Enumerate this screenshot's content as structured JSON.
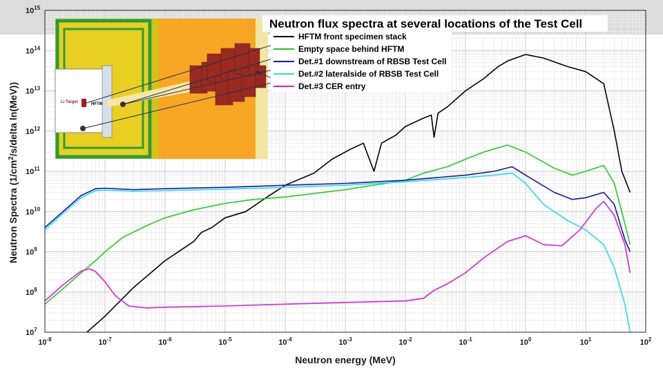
{
  "chart_data": {
    "type": "line",
    "title": "Neutron flux spectra at several locations of the Test Cell",
    "xlabel": "Neutron energy (MeV)",
    "ylabel_parts": [
      "Neutron Spectra (1/cm",
      "2",
      "/s/delta ln(MeV))"
    ],
    "x_scale": "log",
    "y_scale": "log",
    "xlim": [
      1e-08,
      100
    ],
    "ylim": [
      10000000.0,
      1000000000000000.0
    ],
    "grid": true,
    "legend_position": "top-right",
    "x_ticks": [
      {
        "base": "10",
        "exp": "-8"
      },
      {
        "base": "10",
        "exp": "-7"
      },
      {
        "base": "10",
        "exp": "-6"
      },
      {
        "base": "10",
        "exp": "-5"
      },
      {
        "base": "10",
        "exp": "-4"
      },
      {
        "base": "10",
        "exp": "-3"
      },
      {
        "base": "10",
        "exp": "-2"
      },
      {
        "base": "10",
        "exp": "-1"
      },
      {
        "base": "10",
        "exp": "0"
      },
      {
        "base": "10",
        "exp": "1"
      },
      {
        "base": "10",
        "exp": "2"
      }
    ],
    "y_ticks": [
      {
        "base": "10",
        "exp": "7"
      },
      {
        "base": "10",
        "exp": "8"
      },
      {
        "base": "10",
        "exp": "9"
      },
      {
        "base": "10",
        "exp": "10"
      },
      {
        "base": "10",
        "exp": "11"
      },
      {
        "base": "10",
        "exp": "12"
      },
      {
        "base": "10",
        "exp": "13"
      },
      {
        "base": "10",
        "exp": "14"
      },
      {
        "base": "10",
        "exp": "15"
      }
    ],
    "series": [
      {
        "name": "HFTM front specimen stack",
        "color": "#000000",
        "points": [
          [
            5e-08,
            10000000.0
          ],
          [
            1e-07,
            25000000.0
          ],
          [
            3e-07,
            130000000.0
          ],
          [
            1e-06,
            600000000.0
          ],
          [
            3e-06,
            1800000000.0
          ],
          [
            4e-06,
            3000000000.0
          ],
          [
            6e-06,
            4000000000.0
          ],
          [
            1e-05,
            7000000000.0
          ],
          [
            2.2e-05,
            10000000000.0
          ],
          [
            5e-05,
            23000000000.0
          ],
          [
            0.0001,
            45000000000.0
          ],
          [
            0.0003,
            90000000000.0
          ],
          [
            0.0006,
            200000000000.0
          ],
          [
            0.0012,
            350000000000.0
          ],
          [
            0.002,
            500000000000.0
          ],
          [
            0.003,
            100000000000.0
          ],
          [
            0.004,
            500000000000.0
          ],
          [
            0.007,
            800000000000.0
          ],
          [
            0.01,
            1300000000000.0
          ],
          [
            0.02,
            2100000000000.0
          ],
          [
            0.027,
            2500000000000.0
          ],
          [
            0.03,
            700000000000.0
          ],
          [
            0.035,
            2800000000000.0
          ],
          [
            0.05,
            4000000000000.0
          ],
          [
            0.1,
            10000000000000.0
          ],
          [
            0.2,
            20000000000000.0
          ],
          [
            0.35,
            40000000000000.0
          ],
          [
            0.5,
            55000000000000.0
          ],
          [
            1,
            80000000000000.0
          ],
          [
            2,
            65000000000000.0
          ],
          [
            5,
            40000000000000.0
          ],
          [
            10,
            30000000000000.0
          ],
          [
            20,
            15000000000000.0
          ],
          [
            30,
            1000000000000.0
          ],
          [
            40,
            100000000000.0
          ],
          [
            55,
            30000000000.0
          ]
        ]
      },
      {
        "name": "Empty space behind HFTM",
        "color": "#22d11e",
        "points": [
          [
            1e-08,
            50000000.0
          ],
          [
            2e-08,
            120000000.0
          ],
          [
            4e-08,
            300000000.0
          ],
          [
            7e-08,
            600000000.0
          ],
          [
            1e-07,
            1000000000.0
          ],
          [
            2e-07,
            2300000000.0
          ],
          [
            5e-07,
            4500000000.0
          ],
          [
            1e-06,
            7000000000.0
          ],
          [
            3e-06,
            11000000000.0
          ],
          [
            1e-05,
            16000000000.0
          ],
          [
            3e-05,
            20000000000.0
          ],
          [
            0.0001,
            23000000000.0
          ],
          [
            0.001,
            35000000000.0
          ],
          [
            0.01,
            60000000000.0
          ],
          [
            0.02,
            90000000000.0
          ],
          [
            0.05,
            130000000000.0
          ],
          [
            0.1,
            200000000000.0
          ],
          [
            0.2,
            300000000000.0
          ],
          [
            0.5,
            450000000000.0
          ],
          [
            1,
            300000000000.0
          ],
          [
            3,
            120000000000.0
          ],
          [
            6,
            80000000000.0
          ],
          [
            10,
            100000000000.0
          ],
          [
            20,
            140000000000.0
          ],
          [
            30,
            50000000000.0
          ],
          [
            45,
            5000000000.0
          ],
          [
            55,
            1500000000.0
          ]
        ]
      },
      {
        "name": "Det.#1 downstream of RBSB Test Cell",
        "color": "#1515b5",
        "points": [
          [
            1e-08,
            4000000000.0
          ],
          [
            2e-08,
            10000000000.0
          ],
          [
            4e-08,
            25000000000.0
          ],
          [
            7e-08,
            37000000000.0
          ],
          [
            1e-07,
            38000000000.0
          ],
          [
            3e-07,
            35000000000.0
          ],
          [
            1e-06,
            37000000000.0
          ],
          [
            1e-05,
            40000000000.0
          ],
          [
            0.0001,
            45000000000.0
          ],
          [
            0.001,
            50000000000.0
          ],
          [
            0.01,
            60000000000.0
          ],
          [
            0.1,
            80000000000.0
          ],
          [
            0.3,
            100000000000.0
          ],
          [
            0.6,
            130000000000.0
          ],
          [
            1,
            80000000000.0
          ],
          [
            3,
            30000000000.0
          ],
          [
            6,
            20000000000.0
          ],
          [
            10,
            22000000000.0
          ],
          [
            20,
            30000000000.0
          ],
          [
            30,
            15000000000.0
          ],
          [
            45,
            2000000000.0
          ],
          [
            55,
            1000000000.0
          ]
        ]
      },
      {
        "name": "Det.#2 lateralside of RBSB Test Cell",
        "color": "#1ee0f0",
        "points": [
          [
            1e-08,
            3500000000.0
          ],
          [
            2e-08,
            9000000000.0
          ],
          [
            4e-08,
            22000000000.0
          ],
          [
            7e-08,
            33000000000.0
          ],
          [
            1e-07,
            34000000000.0
          ],
          [
            3e-07,
            32000000000.0
          ],
          [
            1e-06,
            33000000000.0
          ],
          [
            1e-05,
            36000000000.0
          ],
          [
            0.0001,
            40000000000.0
          ],
          [
            0.001,
            45000000000.0
          ],
          [
            0.01,
            55000000000.0
          ],
          [
            0.1,
            70000000000.0
          ],
          [
            0.3,
            80000000000.0
          ],
          [
            0.6,
            90000000000.0
          ],
          [
            1,
            50000000000.0
          ],
          [
            2,
            15000000000.0
          ],
          [
            5,
            6000000000.0
          ],
          [
            10,
            3500000000.0
          ],
          [
            20,
            1500000000.0
          ],
          [
            30,
            400000000.0
          ],
          [
            45,
            50000000.0
          ],
          [
            55,
            10000000.0
          ]
        ]
      },
      {
        "name": "Det.#3 CER entry",
        "color": "#e21ee0",
        "points": [
          [
            1e-08,
            60000000.0
          ],
          [
            2e-08,
            150000000.0
          ],
          [
            4e-08,
            330000000.0
          ],
          [
            5.5e-08,
            380000000.0
          ],
          [
            7e-08,
            320000000.0
          ],
          [
            1e-07,
            180000000.0
          ],
          [
            1.5e-07,
            80000000.0
          ],
          [
            2.5e-07,
            45000000.0
          ],
          [
            5e-07,
            40000000.0
          ],
          [
            1e-06,
            42000000.0
          ],
          [
            1e-05,
            45000000.0
          ],
          [
            0.0001,
            50000000.0
          ],
          [
            0.001,
            55000000.0
          ],
          [
            0.01,
            60000000.0
          ],
          [
            0.02,
            70000000.0
          ],
          [
            0.03,
            110000000.0
          ],
          [
            0.05,
            160000000.0
          ],
          [
            0.1,
            300000000.0
          ],
          [
            0.2,
            700000000.0
          ],
          [
            0.5,
            1800000000.0
          ],
          [
            1,
            2500000000.0
          ],
          [
            2,
            1500000000.0
          ],
          [
            4,
            1400000000.0
          ],
          [
            8,
            3500000000.0
          ],
          [
            15,
            12000000000.0
          ],
          [
            20,
            18000000000.0
          ],
          [
            30,
            8000000000.0
          ],
          [
            45,
            1500000000.0
          ],
          [
            55,
            300000000.0
          ]
        ]
      }
    ]
  },
  "inset": {
    "labels": {
      "target": "Li Target",
      "hftm": "HFTM"
    }
  }
}
